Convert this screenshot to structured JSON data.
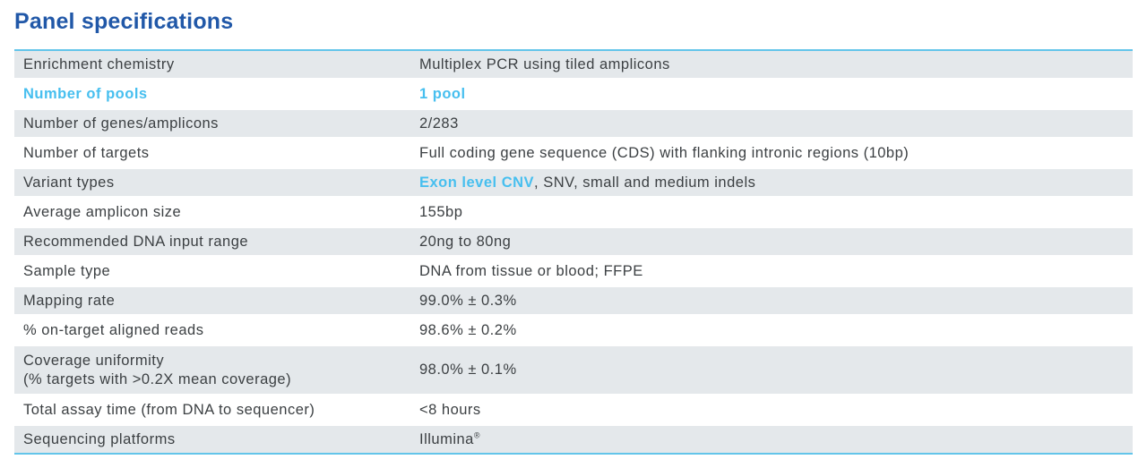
{
  "title": "Panel specifications",
  "colors": {
    "title_blue": "#2158a8",
    "accent_cyan": "#47bfef",
    "rule_cyan": "#63c5ea",
    "row_shade": "#e4e8eb",
    "text": "#3c4043"
  },
  "table": {
    "rows": [
      {
        "shaded": true,
        "label_highlight": false,
        "label_lines": [
          "Enrichment chemistry"
        ],
        "value_parts": [
          {
            "text": "Multiplex PCR using tiled amplicons"
          }
        ]
      },
      {
        "shaded": false,
        "label_highlight": true,
        "label_lines": [
          "Number of pools"
        ],
        "value_parts": [
          {
            "text": "1 pool",
            "highlight": true
          }
        ]
      },
      {
        "shaded": true,
        "label_highlight": false,
        "label_lines": [
          "Number of genes/amplicons"
        ],
        "value_parts": [
          {
            "text": "2/283"
          }
        ]
      },
      {
        "shaded": false,
        "label_highlight": false,
        "label_lines": [
          "Number of targets"
        ],
        "value_parts": [
          {
            "text": "Full coding gene sequence (CDS) with flanking intronic regions (10bp)"
          }
        ]
      },
      {
        "shaded": true,
        "label_highlight": false,
        "label_lines": [
          "Variant types"
        ],
        "value_parts": [
          {
            "text": "Exon level CNV",
            "highlight": true
          },
          {
            "text": ", SNV, small and medium indels"
          }
        ]
      },
      {
        "shaded": false,
        "label_highlight": false,
        "label_lines": [
          "Average amplicon size"
        ],
        "value_parts": [
          {
            "text": "155bp"
          }
        ]
      },
      {
        "shaded": true,
        "label_highlight": false,
        "label_lines": [
          "Recommended DNA input range"
        ],
        "value_parts": [
          {
            "text": "20ng to 80ng"
          }
        ]
      },
      {
        "shaded": false,
        "label_highlight": false,
        "label_lines": [
          "Sample type"
        ],
        "value_parts": [
          {
            "text": "DNA from tissue or blood; FFPE"
          }
        ]
      },
      {
        "shaded": true,
        "label_highlight": false,
        "label_lines": [
          "Mapping rate"
        ],
        "value_parts": [
          {
            "text": "99.0% ± 0.3%"
          }
        ]
      },
      {
        "shaded": false,
        "label_highlight": false,
        "label_lines": [
          "% on-target aligned reads"
        ],
        "value_parts": [
          {
            "text": "98.6% ± 0.2%"
          }
        ]
      },
      {
        "shaded": true,
        "label_highlight": false,
        "label_lines": [
          "Coverage uniformity",
          "(% targets with >0.2X mean coverage)"
        ],
        "value_parts": [
          {
            "text": "98.0% ± 0.1%"
          }
        ]
      },
      {
        "shaded": false,
        "label_highlight": false,
        "label_lines": [
          "Total assay time (from DNA to sequencer)"
        ],
        "value_parts": [
          {
            "text": "<8 hours"
          }
        ]
      },
      {
        "shaded": true,
        "label_highlight": false,
        "label_lines": [
          "Sequencing platforms"
        ],
        "value_parts": [
          {
            "text": "Illumina"
          },
          {
            "text": "®",
            "sup": true
          }
        ]
      }
    ]
  }
}
